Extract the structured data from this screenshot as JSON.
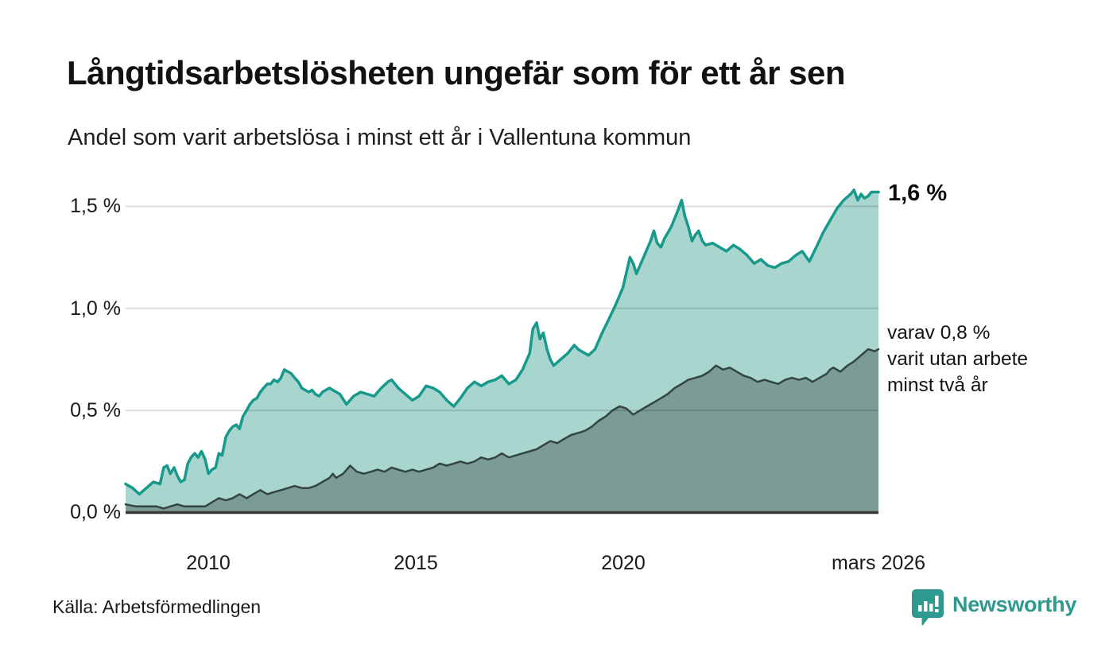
{
  "header": {
    "title": "Långtidsarbetslösheten ungefär som för ett år sen",
    "subtitle": "Andel som varit arbetslösa i minst ett år i Vallentuna kommun"
  },
  "chart_data": {
    "type": "area",
    "title": "Långtidsarbetslösheten ungefär som för ett år sen",
    "subtitle": "Andel som varit arbetslösa i minst ett år i Vallentuna kommun",
    "unit": "%",
    "x_range": [
      2008.0,
      2026.17
    ],
    "y_axis": {
      "labels": [
        "1,5 %",
        "1,0 %",
        "0,5 %",
        "0,0 %"
      ],
      "values": [
        1.5,
        1.0,
        0.5,
        0.0
      ],
      "range": [
        0,
        1.65
      ],
      "grid": true
    },
    "x_axis": {
      "labels": [
        "2010",
        "2015",
        "2020",
        "mars 2026"
      ],
      "values": [
        2010,
        2015,
        2020,
        2026.17
      ]
    },
    "colors": {
      "accent_teal": "#17998c",
      "fill_light": "#a8d5ce",
      "fill_dark": "#7a9c95",
      "stroke_dark": "#334540",
      "baseline": "#3a3a3a",
      "gridline": "rgba(0,0,0,0.13)"
    },
    "annotations": {
      "primary": "1,6 %",
      "secondary": [
        "varav 0,8 %",
        "varit utan arbete",
        "minst två år"
      ]
    },
    "series": [
      {
        "name": "Andel arbetslösa minst ett år",
        "line_color": "#17998c",
        "fill_color": "#a8d5ce",
        "line_width": 3.5,
        "end_value_label": "1,6 %",
        "points": [
          [
            2008.0,
            0.14
          ],
          [
            2008.17,
            0.12
          ],
          [
            2008.33,
            0.09
          ],
          [
            2008.5,
            0.12
          ],
          [
            2008.67,
            0.15
          ],
          [
            2008.83,
            0.14
          ],
          [
            2008.92,
            0.22
          ],
          [
            2009.0,
            0.23
          ],
          [
            2009.08,
            0.19
          ],
          [
            2009.17,
            0.22
          ],
          [
            2009.25,
            0.18
          ],
          [
            2009.33,
            0.15
          ],
          [
            2009.42,
            0.16
          ],
          [
            2009.5,
            0.24
          ],
          [
            2009.58,
            0.27
          ],
          [
            2009.67,
            0.29
          ],
          [
            2009.75,
            0.27
          ],
          [
            2009.83,
            0.3
          ],
          [
            2009.92,
            0.26
          ],
          [
            2010.0,
            0.19
          ],
          [
            2010.08,
            0.21
          ],
          [
            2010.17,
            0.22
          ],
          [
            2010.25,
            0.29
          ],
          [
            2010.33,
            0.28
          ],
          [
            2010.42,
            0.37
          ],
          [
            2010.5,
            0.4
          ],
          [
            2010.58,
            0.42
          ],
          [
            2010.67,
            0.43
          ],
          [
            2010.75,
            0.41
          ],
          [
            2010.83,
            0.47
          ],
          [
            2010.92,
            0.5
          ],
          [
            2011.0,
            0.53
          ],
          [
            2011.08,
            0.55
          ],
          [
            2011.17,
            0.56
          ],
          [
            2011.25,
            0.59
          ],
          [
            2011.33,
            0.61
          ],
          [
            2011.42,
            0.63
          ],
          [
            2011.5,
            0.63
          ],
          [
            2011.58,
            0.65
          ],
          [
            2011.67,
            0.64
          ],
          [
            2011.75,
            0.66
          ],
          [
            2011.83,
            0.7
          ],
          [
            2011.92,
            0.69
          ],
          [
            2012.0,
            0.68
          ],
          [
            2012.08,
            0.66
          ],
          [
            2012.17,
            0.64
          ],
          [
            2012.25,
            0.61
          ],
          [
            2012.33,
            0.6
          ],
          [
            2012.42,
            0.59
          ],
          [
            2012.5,
            0.6
          ],
          [
            2012.58,
            0.58
          ],
          [
            2012.67,
            0.57
          ],
          [
            2012.75,
            0.59
          ],
          [
            2012.83,
            0.6
          ],
          [
            2012.92,
            0.61
          ],
          [
            2013.0,
            0.6
          ],
          [
            2013.17,
            0.58
          ],
          [
            2013.33,
            0.53
          ],
          [
            2013.5,
            0.57
          ],
          [
            2013.67,
            0.59
          ],
          [
            2013.83,
            0.58
          ],
          [
            2014.0,
            0.57
          ],
          [
            2014.17,
            0.61
          ],
          [
            2014.33,
            0.64
          ],
          [
            2014.42,
            0.65
          ],
          [
            2014.58,
            0.61
          ],
          [
            2014.75,
            0.58
          ],
          [
            2014.92,
            0.55
          ],
          [
            2015.08,
            0.57
          ],
          [
            2015.25,
            0.62
          ],
          [
            2015.42,
            0.61
          ],
          [
            2015.58,
            0.59
          ],
          [
            2015.75,
            0.55
          ],
          [
            2015.92,
            0.52
          ],
          [
            2016.08,
            0.56
          ],
          [
            2016.25,
            0.61
          ],
          [
            2016.42,
            0.64
          ],
          [
            2016.58,
            0.62
          ],
          [
            2016.75,
            0.64
          ],
          [
            2016.92,
            0.65
          ],
          [
            2017.08,
            0.67
          ],
          [
            2017.25,
            0.63
          ],
          [
            2017.42,
            0.65
          ],
          [
            2017.58,
            0.7
          ],
          [
            2017.75,
            0.78
          ],
          [
            2017.83,
            0.9
          ],
          [
            2017.92,
            0.93
          ],
          [
            2018.0,
            0.85
          ],
          [
            2018.08,
            0.88
          ],
          [
            2018.17,
            0.8
          ],
          [
            2018.25,
            0.75
          ],
          [
            2018.33,
            0.72
          ],
          [
            2018.5,
            0.75
          ],
          [
            2018.67,
            0.78
          ],
          [
            2018.83,
            0.82
          ],
          [
            2018.92,
            0.8
          ],
          [
            2019.0,
            0.79
          ],
          [
            2019.17,
            0.77
          ],
          [
            2019.33,
            0.8
          ],
          [
            2019.5,
            0.88
          ],
          [
            2019.67,
            0.95
          ],
          [
            2019.83,
            1.02
          ],
          [
            2020.0,
            1.1
          ],
          [
            2020.08,
            1.17
          ],
          [
            2020.17,
            1.25
          ],
          [
            2020.25,
            1.22
          ],
          [
            2020.33,
            1.17
          ],
          [
            2020.5,
            1.25
          ],
          [
            2020.67,
            1.33
          ],
          [
            2020.75,
            1.38
          ],
          [
            2020.83,
            1.32
          ],
          [
            2020.92,
            1.3
          ],
          [
            2021.0,
            1.34
          ],
          [
            2021.17,
            1.4
          ],
          [
            2021.33,
            1.48
          ],
          [
            2021.42,
            1.53
          ],
          [
            2021.5,
            1.45
          ],
          [
            2021.58,
            1.4
          ],
          [
            2021.67,
            1.33
          ],
          [
            2021.75,
            1.36
          ],
          [
            2021.83,
            1.38
          ],
          [
            2021.92,
            1.33
          ],
          [
            2022.0,
            1.31
          ],
          [
            2022.17,
            1.32
          ],
          [
            2022.33,
            1.3
          ],
          [
            2022.5,
            1.28
          ],
          [
            2022.67,
            1.31
          ],
          [
            2022.83,
            1.29
          ],
          [
            2023.0,
            1.26
          ],
          [
            2023.17,
            1.22
          ],
          [
            2023.33,
            1.24
          ],
          [
            2023.5,
            1.21
          ],
          [
            2023.67,
            1.2
          ],
          [
            2023.83,
            1.22
          ],
          [
            2024.0,
            1.23
          ],
          [
            2024.17,
            1.26
          ],
          [
            2024.33,
            1.28
          ],
          [
            2024.5,
            1.23
          ],
          [
            2024.67,
            1.3
          ],
          [
            2024.83,
            1.37
          ],
          [
            2025.0,
            1.43
          ],
          [
            2025.17,
            1.49
          ],
          [
            2025.33,
            1.53
          ],
          [
            2025.5,
            1.56
          ],
          [
            2025.58,
            1.58
          ],
          [
            2025.67,
            1.53
          ],
          [
            2025.75,
            1.56
          ],
          [
            2025.83,
            1.54
          ],
          [
            2025.92,
            1.55
          ],
          [
            2026.0,
            1.57
          ],
          [
            2026.17,
            1.57
          ]
        ]
      },
      {
        "name": "varav utan arbete minst två år",
        "line_color": "#334540",
        "fill_color": "#7a9c95",
        "line_width": 2.5,
        "end_value_label": "0,8 %",
        "points": [
          [
            2008.0,
            0.04
          ],
          [
            2008.25,
            0.03
          ],
          [
            2008.5,
            0.03
          ],
          [
            2008.75,
            0.03
          ],
          [
            2008.92,
            0.02
          ],
          [
            2009.08,
            0.03
          ],
          [
            2009.25,
            0.04
          ],
          [
            2009.42,
            0.03
          ],
          [
            2009.58,
            0.03
          ],
          [
            2009.75,
            0.03
          ],
          [
            2009.92,
            0.03
          ],
          [
            2010.08,
            0.05
          ],
          [
            2010.25,
            0.07
          ],
          [
            2010.42,
            0.06
          ],
          [
            2010.58,
            0.07
          ],
          [
            2010.75,
            0.09
          ],
          [
            2010.92,
            0.07
          ],
          [
            2011.08,
            0.09
          ],
          [
            2011.25,
            0.11
          ],
          [
            2011.42,
            0.09
          ],
          [
            2011.58,
            0.1
          ],
          [
            2011.75,
            0.11
          ],
          [
            2011.92,
            0.12
          ],
          [
            2012.08,
            0.13
          ],
          [
            2012.25,
            0.12
          ],
          [
            2012.42,
            0.12
          ],
          [
            2012.58,
            0.13
          ],
          [
            2012.75,
            0.15
          ],
          [
            2012.92,
            0.17
          ],
          [
            2013.0,
            0.19
          ],
          [
            2013.08,
            0.17
          ],
          [
            2013.25,
            0.19
          ],
          [
            2013.42,
            0.23
          ],
          [
            2013.58,
            0.2
          ],
          [
            2013.75,
            0.19
          ],
          [
            2013.92,
            0.2
          ],
          [
            2014.08,
            0.21
          ],
          [
            2014.25,
            0.2
          ],
          [
            2014.42,
            0.22
          ],
          [
            2014.58,
            0.21
          ],
          [
            2014.75,
            0.2
          ],
          [
            2014.92,
            0.21
          ],
          [
            2015.08,
            0.2
          ],
          [
            2015.25,
            0.21
          ],
          [
            2015.42,
            0.22
          ],
          [
            2015.58,
            0.24
          ],
          [
            2015.75,
            0.23
          ],
          [
            2015.92,
            0.24
          ],
          [
            2016.08,
            0.25
          ],
          [
            2016.25,
            0.24
          ],
          [
            2016.42,
            0.25
          ],
          [
            2016.58,
            0.27
          ],
          [
            2016.75,
            0.26
          ],
          [
            2016.92,
            0.27
          ],
          [
            2017.08,
            0.29
          ],
          [
            2017.25,
            0.27
          ],
          [
            2017.42,
            0.28
          ],
          [
            2017.58,
            0.29
          ],
          [
            2017.75,
            0.3
          ],
          [
            2017.92,
            0.31
          ],
          [
            2018.08,
            0.33
          ],
          [
            2018.25,
            0.35
          ],
          [
            2018.42,
            0.34
          ],
          [
            2018.58,
            0.36
          ],
          [
            2018.75,
            0.38
          ],
          [
            2018.92,
            0.39
          ],
          [
            2019.08,
            0.4
          ],
          [
            2019.25,
            0.42
          ],
          [
            2019.42,
            0.45
          ],
          [
            2019.58,
            0.47
          ],
          [
            2019.75,
            0.5
          ],
          [
            2019.92,
            0.52
          ],
          [
            2020.08,
            0.51
          ],
          [
            2020.25,
            0.48
          ],
          [
            2020.42,
            0.5
          ],
          [
            2020.58,
            0.52
          ],
          [
            2020.75,
            0.54
          ],
          [
            2020.92,
            0.56
          ],
          [
            2021.08,
            0.58
          ],
          [
            2021.25,
            0.61
          ],
          [
            2021.42,
            0.63
          ],
          [
            2021.58,
            0.65
          ],
          [
            2021.75,
            0.66
          ],
          [
            2021.92,
            0.67
          ],
          [
            2022.08,
            0.69
          ],
          [
            2022.25,
            0.72
          ],
          [
            2022.42,
            0.7
          ],
          [
            2022.58,
            0.71
          ],
          [
            2022.75,
            0.69
          ],
          [
            2022.92,
            0.67
          ],
          [
            2023.08,
            0.66
          ],
          [
            2023.25,
            0.64
          ],
          [
            2023.42,
            0.65
          ],
          [
            2023.58,
            0.64
          ],
          [
            2023.75,
            0.63
          ],
          [
            2023.92,
            0.65
          ],
          [
            2024.08,
            0.66
          ],
          [
            2024.25,
            0.65
          ],
          [
            2024.42,
            0.66
          ],
          [
            2024.58,
            0.64
          ],
          [
            2024.75,
            0.66
          ],
          [
            2024.92,
            0.68
          ],
          [
            2025.0,
            0.7
          ],
          [
            2025.08,
            0.71
          ],
          [
            2025.25,
            0.69
          ],
          [
            2025.42,
            0.72
          ],
          [
            2025.58,
            0.74
          ],
          [
            2025.75,
            0.77
          ],
          [
            2025.92,
            0.8
          ],
          [
            2026.08,
            0.79
          ],
          [
            2026.17,
            0.8
          ]
        ]
      }
    ]
  },
  "footer": {
    "source": "Källa: Arbetsförmedlingen",
    "brand": "Newsworthy"
  }
}
